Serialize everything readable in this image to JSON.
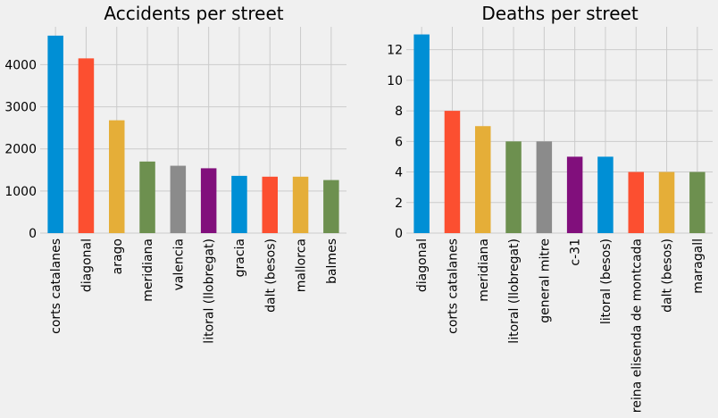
{
  "chart_data": [
    {
      "type": "bar",
      "title": "Accidents per street",
      "xlabel": "",
      "ylabel": "",
      "ylim": [
        0,
        4900
      ],
      "yticks": [
        0,
        1000,
        2000,
        3000,
        4000
      ],
      "grid": true,
      "categories": [
        "corts catalanes",
        "diagonal",
        "arago",
        "meridiana",
        "valencia",
        "litoral (llobregat)",
        "gracia",
        "dalt (besos)",
        "mallorca",
        "balmes"
      ],
      "values": [
        4690,
        4150,
        2680,
        1700,
        1600,
        1540,
        1360,
        1340,
        1340,
        1260
      ]
    },
    {
      "type": "bar",
      "title": "Deaths per street",
      "xlabel": "",
      "ylabel": "",
      "ylim": [
        0,
        13.5
      ],
      "yticks": [
        0,
        2,
        4,
        6,
        8,
        10,
        12
      ],
      "grid": true,
      "categories": [
        "diagonal",
        "corts catalanes",
        "meridiana",
        "litoral (llobregat)",
        "general mitre",
        "c-31",
        "litoral (besos)",
        "reina elisenda de montcada",
        "dalt (besos)",
        "maragall"
      ],
      "values": [
        13,
        8,
        7,
        6,
        6,
        5,
        5,
        4,
        4,
        4
      ]
    }
  ],
  "colors": [
    "#008fd5",
    "#fc4f30",
    "#e5ae38",
    "#6d904f",
    "#8b8b8b",
    "#810f7c"
  ]
}
